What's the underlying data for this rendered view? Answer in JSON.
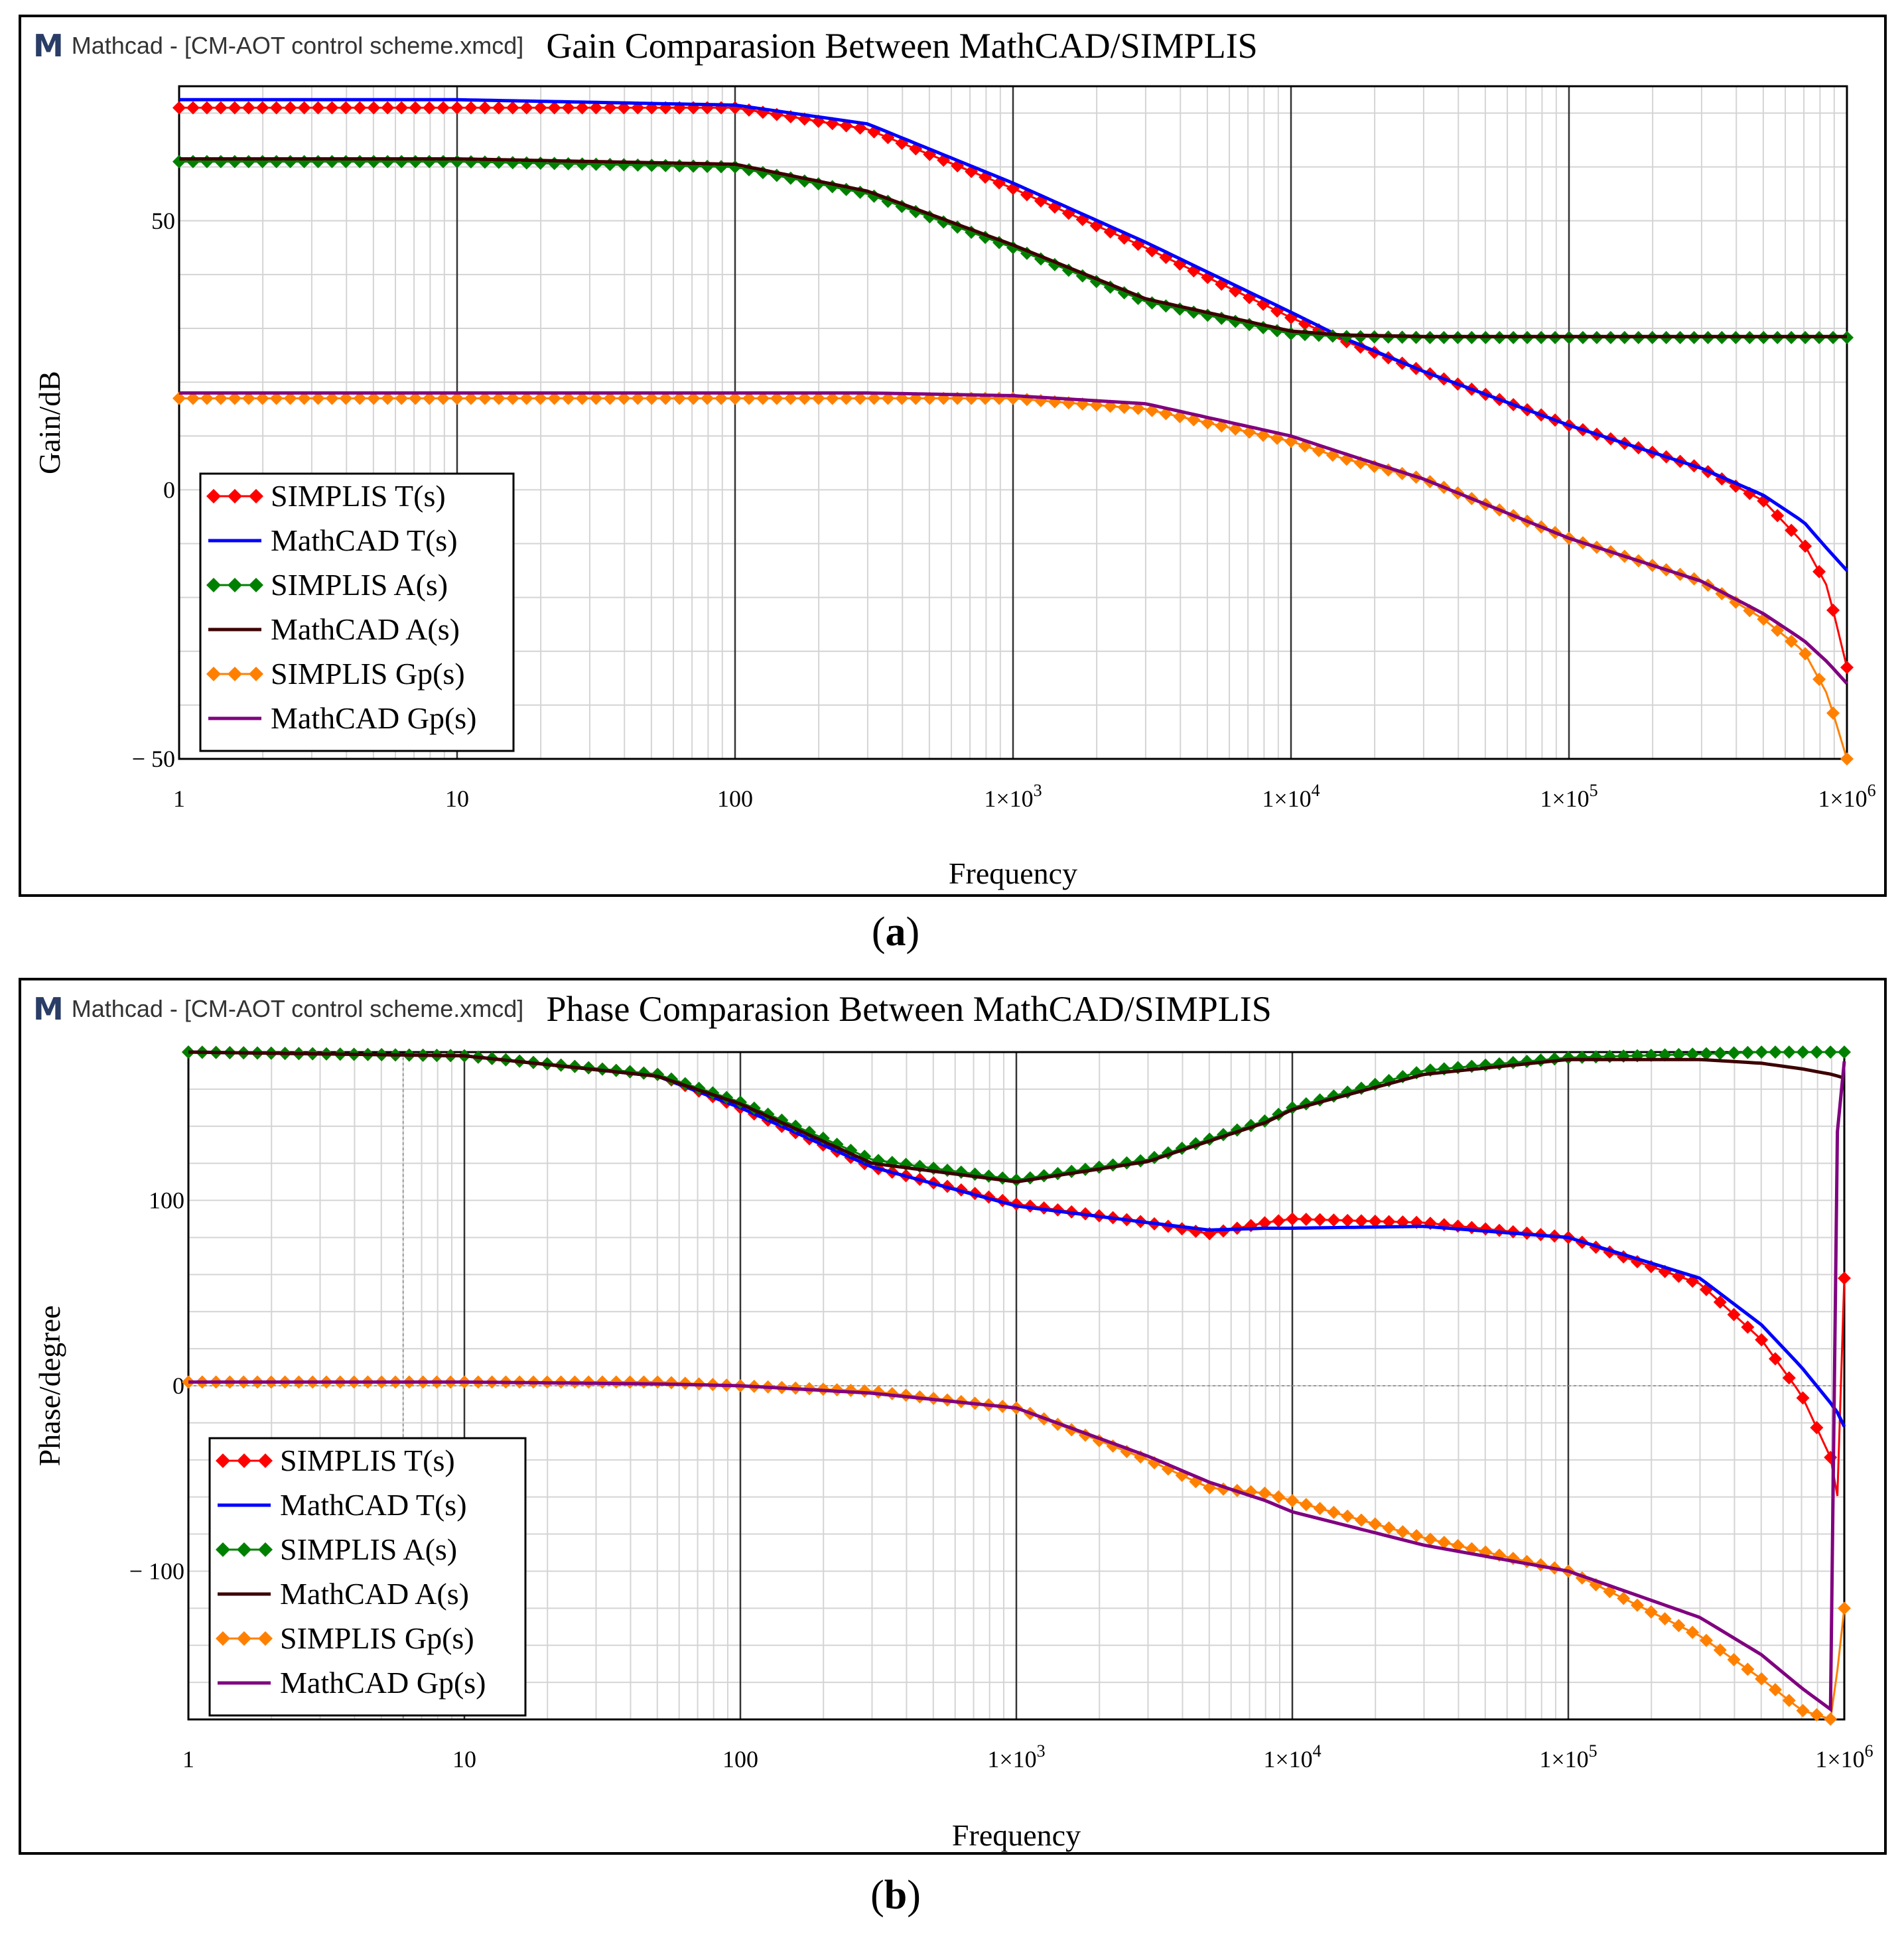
{
  "panels": [
    {
      "app_title": "Mathcad - [CM-AOT control scheme.xmcd]",
      "caption_prefix": "(",
      "caption_letter": "a",
      "caption_suffix": ")"
    },
    {
      "app_title": "Mathcad - [CM-AOT control scheme.xmcd]",
      "caption_prefix": "(",
      "caption_letter": "b",
      "caption_suffix": ")"
    }
  ],
  "colors": {
    "simplis_T": "#ff0000",
    "mathcad_T": "#0000ff",
    "simplis_A": "#008000",
    "mathcad_A": "#3c0000",
    "simplis_Gp": "#ff8000",
    "mathcad_Gp": "#800080"
  },
  "chart_data": [
    {
      "type": "line",
      "title": "Gain Comparasion Between MathCAD/SIMPLIS",
      "xlabel": "Frequency",
      "ylabel": "Gain/dB",
      "xscale": "log",
      "xlim": [
        1,
        1000000
      ],
      "ylim": [
        -50,
        75
      ],
      "x_ticks": [
        1,
        10,
        100,
        1000,
        10000,
        100000,
        1000000
      ],
      "x_tick_labels": [
        "1",
        "10",
        "100",
        "1×10",
        "1×10",
        "1×10",
        "1×10"
      ],
      "x_tick_exponents": [
        "",
        "",
        "",
        "3",
        "4",
        "5",
        "6"
      ],
      "y_ticks": [
        50,
        0,
        -50
      ],
      "y_tick_labels": [
        "50",
        "0",
        "− 50"
      ],
      "legend_position": "bottom-left",
      "x": [
        1,
        10,
        100,
        300,
        1000,
        3000,
        10000,
        15000,
        30000,
        100000,
        300000,
        500000,
        700000,
        850000,
        1000000
      ],
      "series": [
        {
          "name": "SIMPLIS T(s)",
          "color_key": "simplis_T",
          "style": "diamond",
          "values": [
            71,
            71,
            71,
            67,
            56,
            45,
            32,
            28,
            22,
            12,
            4,
            -2,
            -10,
            -18,
            -33
          ]
        },
        {
          "name": "MathCAD T(s)",
          "color_key": "mathcad_T",
          "style": "line",
          "values": [
            72.5,
            72.5,
            71.5,
            68,
            57,
            46,
            33,
            28.5,
            22,
            12,
            4,
            -1,
            -6,
            -11,
            -15
          ]
        },
        {
          "name": "SIMPLIS A(s)",
          "color_key": "simplis_A",
          "style": "diamond",
          "values": [
            61,
            61,
            60,
            55,
            45,
            35,
            29,
            28.5,
            28.3,
            28.3,
            28.3,
            28.3,
            28.3,
            28.3,
            28.3
          ]
        },
        {
          "name": "MathCAD A(s)",
          "color_key": "mathcad_A",
          "style": "line",
          "values": [
            61.5,
            61.5,
            60.5,
            55.5,
            45.5,
            35.5,
            29.5,
            28.8,
            28.5,
            28.5,
            28.5,
            28.5,
            28.5,
            28.5,
            28.5
          ]
        },
        {
          "name": "SIMPLIS Gp(s)",
          "color_key": "simplis_Gp",
          "style": "diamond",
          "values": [
            17,
            17,
            17,
            17,
            17,
            15,
            9,
            6,
            2,
            -9,
            -17,
            -24,
            -30,
            -38,
            -50
          ]
        },
        {
          "name": "MathCAD Gp(s)",
          "color_key": "mathcad_Gp",
          "style": "line",
          "values": [
            18,
            18,
            18,
            18,
            17.5,
            16,
            10,
            7,
            2,
            -9,
            -17,
            -23,
            -28,
            -32,
            -36
          ]
        }
      ]
    },
    {
      "type": "line",
      "title": "Phase Comparasion Between MathCAD/SIMPLIS",
      "xlabel": "Frequency",
      "ylabel": "Phase/degree",
      "xscale": "log",
      "xlim": [
        1,
        1000000
      ],
      "ylim": [
        -180,
        180
      ],
      "x_ticks": [
        1,
        10,
        100,
        1000,
        10000,
        100000,
        1000000
      ],
      "x_tick_labels": [
        "1",
        "10",
        "100",
        "1×10",
        "1×10",
        "1×10",
        "1×10"
      ],
      "x_tick_exponents": [
        "",
        "",
        "",
        "3",
        "4",
        "5",
        "6"
      ],
      "y_ticks": [
        100,
        0,
        -100
      ],
      "y_tick_labels": [
        "100",
        "0",
        "− 100"
      ],
      "legend_position": "bottom-left",
      "x": [
        1,
        10,
        50,
        100,
        300,
        1000,
        3000,
        5000,
        8000,
        10000,
        30000,
        100000,
        300000,
        500000,
        700000,
        900000,
        950000,
        1000000
      ],
      "series": [
        {
          "name": "SIMPLIS T(s)",
          "color_key": "simplis_T",
          "style": "diamond",
          "values": [
            180,
            178,
            168,
            150,
            118,
            98,
            88,
            82,
            88,
            90,
            88,
            80,
            55,
            25,
            -5,
            -40,
            -62,
            58
          ]
        },
        {
          "name": "MathCAD T(s)",
          "color_key": "mathcad_T",
          "style": "line",
          "values": [
            180,
            178,
            167,
            150,
            118,
            97,
            88,
            84,
            85,
            85,
            86,
            80,
            58,
            33,
            10,
            -10,
            -15,
            -22
          ]
        },
        {
          "name": "SIMPLIS A(s)",
          "color_key": "simplis_A",
          "style": "diamond",
          "values": [
            180,
            178,
            168,
            153,
            122,
            111,
            122,
            133,
            143,
            150,
            170,
            177,
            179,
            180,
            180,
            180,
            180,
            180
          ]
        },
        {
          "name": "MathCAD A(s)",
          "color_key": "mathcad_A",
          "style": "line",
          "values": [
            180,
            178,
            167,
            152,
            120,
            110,
            121,
            132,
            142,
            149,
            168,
            176,
            176,
            174,
            171,
            168,
            167,
            166
          ]
        },
        {
          "name": "SIMPLIS Gp(s)",
          "color_key": "simplis_Gp",
          "style": "diamond",
          "values": [
            2,
            2,
            2,
            0,
            -3,
            -12,
            -40,
            -55,
            -58,
            -62,
            -82,
            -100,
            -135,
            -158,
            -175,
            -180,
            -150,
            -120
          ]
        },
        {
          "name": "MathCAD Gp(s)",
          "color_key": "mathcad_Gp",
          "style": "line",
          "values": [
            2,
            2,
            1,
            0,
            -4,
            -12,
            -38,
            -52,
            -62,
            -68,
            -86,
            -100,
            -125,
            -145,
            -163,
            -175,
            178,
            175
          ]
        }
      ]
    }
  ]
}
